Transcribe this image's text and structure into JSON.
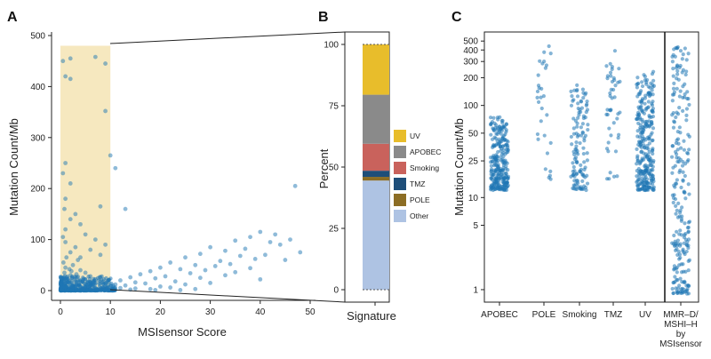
{
  "panels": {
    "a": {
      "letter": "A"
    },
    "b": {
      "letter": "B"
    },
    "c": {
      "letter": "C"
    }
  },
  "colors": {
    "point": "#1f77b4",
    "highlight": "#f5e6b8",
    "UV": "#e8bd2b",
    "APOBEC": "#8a8a8a",
    "Smoking": "#c9625c",
    "TMZ": "#1e4e79",
    "POLE": "#8c6d24",
    "Other": "#aec3e3"
  },
  "chart_data": [
    {
      "panel": "A",
      "type": "scatter",
      "xlabel": "MSIsensor Score",
      "ylabel": "Mutation Count/Mb",
      "xlim": [
        0,
        50
      ],
      "ylim": [
        0,
        500
      ],
      "xticks": [
        "0",
        "10",
        "20",
        "30",
        "40",
        "50"
      ],
      "yticks": [
        "0",
        "100",
        "200",
        "300",
        "400",
        "500"
      ],
      "highlight_region": {
        "x": [
          0,
          10
        ],
        "y": [
          0,
          480
        ]
      },
      "points": [
        [
          0.5,
          450
        ],
        [
          2,
          455
        ],
        [
          7,
          458
        ],
        [
          9,
          445
        ],
        [
          1,
          420
        ],
        [
          2,
          415
        ],
        [
          9,
          352
        ],
        [
          10,
          265
        ],
        [
          11,
          240
        ],
        [
          1,
          250
        ],
        [
          0.5,
          230
        ],
        [
          2,
          210
        ],
        [
          8,
          165
        ],
        [
          13,
          160
        ],
        [
          1,
          180
        ],
        [
          0.8,
          160
        ],
        [
          3,
          150
        ],
        [
          2,
          140
        ],
        [
          4,
          130
        ],
        [
          1,
          120
        ],
        [
          5,
          110
        ],
        [
          0.5,
          105
        ],
        [
          7,
          100
        ],
        [
          9,
          90
        ],
        [
          1,
          95
        ],
        [
          3,
          85
        ],
        [
          6,
          80
        ],
        [
          2,
          75
        ],
        [
          8,
          70
        ],
        [
          4,
          65
        ],
        [
          47,
          205
        ],
        [
          40,
          115
        ],
        [
          43,
          110
        ],
        [
          38,
          105
        ],
        [
          46,
          100
        ],
        [
          35,
          98
        ],
        [
          42,
          95
        ],
        [
          44,
          90
        ],
        [
          30,
          85
        ],
        [
          37,
          82
        ],
        [
          33,
          78
        ],
        [
          48,
          75
        ],
        [
          28,
          72
        ],
        [
          41,
          70
        ],
        [
          36,
          68
        ],
        [
          25,
          65
        ],
        [
          39,
          62
        ],
        [
          45,
          60
        ],
        [
          32,
          58
        ],
        [
          22,
          55
        ],
        [
          34,
          52
        ],
        [
          27,
          50
        ],
        [
          31,
          48
        ],
        [
          20,
          45
        ],
        [
          38,
          44
        ],
        [
          24,
          42
        ],
        [
          29,
          40
        ],
        [
          18,
          38
        ],
        [
          35,
          36
        ],
        [
          26,
          34
        ],
        [
          16,
          32
        ],
        [
          33,
          30
        ],
        [
          21,
          28
        ],
        [
          14,
          26
        ],
        [
          28,
          25
        ],
        [
          19,
          24
        ],
        [
          40,
          22
        ],
        [
          12,
          20
        ],
        [
          23,
          18
        ],
        [
          15,
          16
        ],
        [
          30,
          15
        ],
        [
          17,
          14
        ],
        [
          11,
          12
        ],
        [
          25,
          12
        ],
        [
          13,
          10
        ],
        [
          20,
          8
        ],
        [
          10,
          8
        ],
        [
          22,
          6
        ],
        [
          12,
          5
        ],
        [
          15,
          4
        ],
        [
          18,
          3
        ],
        [
          27,
          3
        ],
        [
          14,
          2
        ],
        [
          11,
          2
        ],
        [
          19,
          1
        ],
        [
          24,
          1
        ],
        [
          9,
          2
        ],
        [
          8,
          4
        ],
        [
          6,
          3
        ],
        [
          5,
          6
        ],
        [
          7,
          5
        ],
        [
          4,
          8
        ],
        [
          3,
          10
        ],
        [
          2,
          12
        ],
        [
          1,
          15
        ],
        [
          0.5,
          18
        ],
        [
          1.5,
          22
        ],
        [
          3,
          25
        ],
        [
          2,
          30
        ],
        [
          0.8,
          35
        ],
        [
          4,
          40
        ],
        [
          1,
          45
        ],
        [
          2.5,
          50
        ],
        [
          0.6,
          55
        ],
        [
          3.5,
          60
        ],
        [
          1.2,
          65
        ],
        [
          5,
          35
        ],
        [
          6,
          28
        ],
        [
          7,
          22
        ],
        [
          8,
          18
        ],
        [
          9,
          14
        ],
        [
          9.5,
          10
        ],
        [
          8.5,
          6
        ],
        [
          6.5,
          12
        ],
        [
          5.5,
          16
        ],
        [
          4.5,
          20
        ],
        [
          3.2,
          32
        ],
        [
          2.2,
          38
        ],
        [
          1.8,
          42
        ],
        [
          0.9,
          28
        ]
      ]
    },
    {
      "panel": "B",
      "type": "bar",
      "xlabel": "Signature",
      "ylabel": "Percent",
      "ylim": [
        0,
        100
      ],
      "yticks": [
        "0",
        "25",
        "50",
        "75",
        "100"
      ],
      "categories": [
        "Signature"
      ],
      "series": [
        {
          "name": "Other",
          "values": [
            44.5
          ]
        },
        {
          "name": "POLE",
          "values": [
            1.5
          ]
        },
        {
          "name": "TMZ",
          "values": [
            2.5
          ]
        },
        {
          "name": "Smoking",
          "values": [
            11
          ]
        },
        {
          "name": "APOBEC",
          "values": [
            20
          ]
        },
        {
          "name": "UV",
          "values": [
            20.5
          ]
        }
      ],
      "legend": [
        "UV",
        "APOBEC",
        "Smoking",
        "TMZ",
        "POLE",
        "Other"
      ],
      "legend_position": "right"
    },
    {
      "panel": "C",
      "type": "scatter",
      "ylabel": "Mutation Count/Mb",
      "yscale": "log",
      "ylim": [
        0.8,
        600
      ],
      "yticks": [
        "1",
        "5",
        "10",
        "25",
        "50",
        "100",
        "200",
        "300",
        "400",
        "500"
      ],
      "categories": [
        "APOBEC",
        "POLE",
        "Smoking",
        "TMZ",
        "UV",
        "MMR–D/ MSHI–H by MSIsensor"
      ],
      "groups": [
        {
          "category": "APOBEC",
          "n": 260,
          "min": 12,
          "max": 75
        },
        {
          "category": "POLE",
          "n": 30,
          "min": 15,
          "max": 450
        },
        {
          "category": "Smoking",
          "n": 120,
          "min": 12,
          "max": 170
        },
        {
          "category": "TMZ",
          "n": 45,
          "min": 12,
          "max": 410
        },
        {
          "category": "UV",
          "n": 280,
          "min": 12,
          "max": 240
        },
        {
          "category": "MMR–D/ MSHI–H by MSIsensor",
          "n": 230,
          "min": 0.9,
          "max": 450
        }
      ]
    }
  ]
}
